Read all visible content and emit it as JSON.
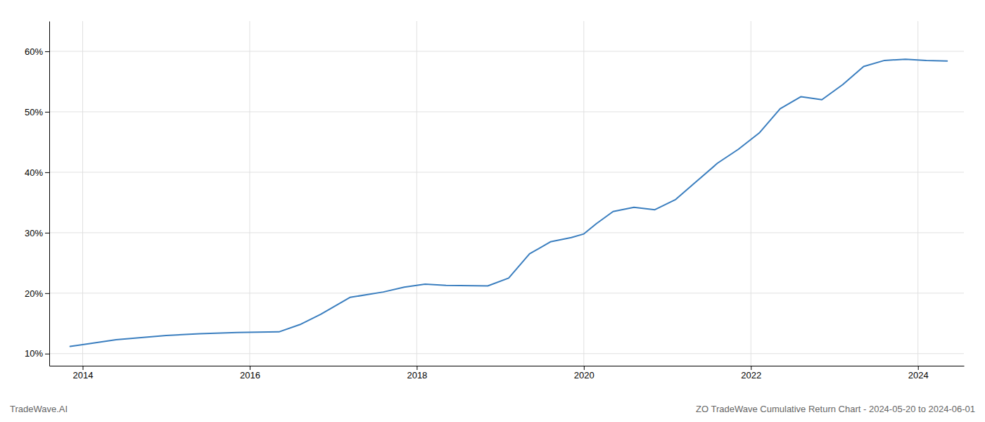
{
  "chart_data": {
    "type": "line",
    "title": "ZO TradeWave Cumulative Return Chart - 2024-05-20 to 2024-06-01",
    "annotations": [
      "TradeWave.AI"
    ],
    "x": [
      2013.85,
      2014.0,
      2014.4,
      2015.0,
      2015.4,
      2015.85,
      2016.1,
      2016.35,
      2016.6,
      2016.85,
      2017.2,
      2017.6,
      2017.85,
      2018.1,
      2018.35,
      2018.85,
      2019.1,
      2019.35,
      2019.6,
      2019.85,
      2020.0,
      2020.15,
      2020.35,
      2020.6,
      2020.85,
      2021.1,
      2021.35,
      2021.6,
      2021.85,
      2022.1,
      2022.35,
      2022.6,
      2022.85,
      2023.1,
      2023.35,
      2023.6,
      2023.85,
      2024.1,
      2024.35
    ],
    "values": [
      11.2,
      11.5,
      12.3,
      13.0,
      13.3,
      13.5,
      13.55,
      13.6,
      14.8,
      16.5,
      19.3,
      20.2,
      21.0,
      21.5,
      21.3,
      21.2,
      22.5,
      26.5,
      28.5,
      29.2,
      29.8,
      31.5,
      33.5,
      34.2,
      33.8,
      35.5,
      38.5,
      41.5,
      43.8,
      46.5,
      50.5,
      52.5,
      52.0,
      54.5,
      57.5,
      58.5,
      58.7,
      58.5,
      58.4
    ],
    "color": "#3a7ebf",
    "xlim": [
      2013.6,
      2024.55
    ],
    "ylim": [
      8.0,
      65.0
    ],
    "xticks": [
      2014,
      2016,
      2018,
      2020,
      2022,
      2024
    ],
    "yticks": [
      {
        "value": 10,
        "label": "10%"
      },
      {
        "value": 20,
        "label": "20%"
      },
      {
        "value": 30,
        "label": "30%"
      },
      {
        "value": 40,
        "label": "40%"
      },
      {
        "value": 50,
        "label": "50%"
      },
      {
        "value": 60,
        "label": "60%"
      }
    ],
    "grid": true
  }
}
